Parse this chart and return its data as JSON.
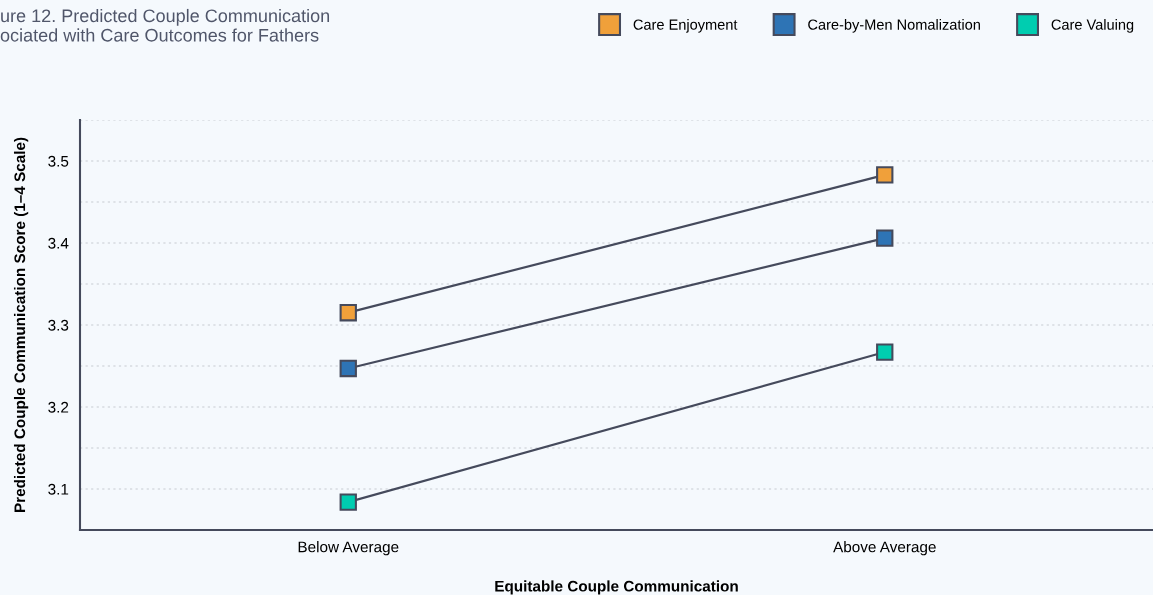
{
  "chart_data": {
    "type": "line",
    "title": "ure 12. Predicted Couple Communication\nociated with Care Outcomes for Fathers",
    "xlabel": "Equitable Couple Communication",
    "ylabel": "Predicted Couple Communication Score (1–4 Scale)",
    "categories": [
      "Below Average",
      "Above Average"
    ],
    "series": [
      {
        "name": "Care Enjoyment",
        "color": "#f0a03a",
        "values": [
          3.315,
          3.483
        ]
      },
      {
        "name": "Care-by-Men Nomalization",
        "color": "#2e74b5",
        "values": [
          3.247,
          3.406
        ]
      },
      {
        "name": "Care Valuing",
        "color": "#00cdb0",
        "values": [
          3.084,
          3.267
        ]
      }
    ],
    "ylim": [
      3.05,
      3.55
    ],
    "yticks": [
      3.1,
      {
        "value": 3.15,
        "label": null
      },
      3.2,
      {
        "value": 3.25,
        "label": null
      },
      3.3,
      {
        "value": 3.35,
        "label": null
      },
      3.4,
      {
        "value": 3.45,
        "label": null
      },
      3.5,
      {
        "value": 3.55,
        "label": null
      }
    ],
    "grid": "y",
    "legend": "top right",
    "marker": "square",
    "line_style": "solid"
  }
}
